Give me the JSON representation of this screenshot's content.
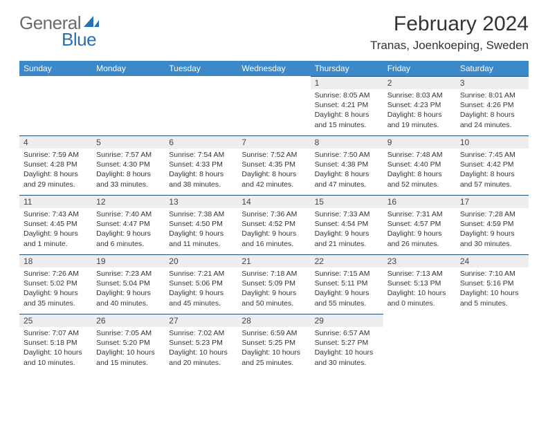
{
  "logo": {
    "text1": "General",
    "text2": "Blue"
  },
  "title": "February 2024",
  "location": "Tranas, Joenkoeping, Sweden",
  "colors": {
    "header_bg": "#3b89c9",
    "header_text": "#ffffff",
    "daynum_bg": "#eeeeee",
    "daynum_border": "#1d4e7a",
    "body_text": "#333333",
    "logo_gray": "#6a6a6a",
    "logo_blue": "#2b6fb3"
  },
  "day_headers": [
    "Sunday",
    "Monday",
    "Tuesday",
    "Wednesday",
    "Thursday",
    "Friday",
    "Saturday"
  ],
  "weeks": [
    [
      null,
      null,
      null,
      null,
      {
        "n": "1",
        "sunrise": "Sunrise: 8:05 AM",
        "sunset": "Sunset: 4:21 PM",
        "daylight1": "Daylight: 8 hours",
        "daylight2": "and 15 minutes."
      },
      {
        "n": "2",
        "sunrise": "Sunrise: 8:03 AM",
        "sunset": "Sunset: 4:23 PM",
        "daylight1": "Daylight: 8 hours",
        "daylight2": "and 19 minutes."
      },
      {
        "n": "3",
        "sunrise": "Sunrise: 8:01 AM",
        "sunset": "Sunset: 4:26 PM",
        "daylight1": "Daylight: 8 hours",
        "daylight2": "and 24 minutes."
      }
    ],
    [
      {
        "n": "4",
        "sunrise": "Sunrise: 7:59 AM",
        "sunset": "Sunset: 4:28 PM",
        "daylight1": "Daylight: 8 hours",
        "daylight2": "and 29 minutes."
      },
      {
        "n": "5",
        "sunrise": "Sunrise: 7:57 AM",
        "sunset": "Sunset: 4:30 PM",
        "daylight1": "Daylight: 8 hours",
        "daylight2": "and 33 minutes."
      },
      {
        "n": "6",
        "sunrise": "Sunrise: 7:54 AM",
        "sunset": "Sunset: 4:33 PM",
        "daylight1": "Daylight: 8 hours",
        "daylight2": "and 38 minutes."
      },
      {
        "n": "7",
        "sunrise": "Sunrise: 7:52 AM",
        "sunset": "Sunset: 4:35 PM",
        "daylight1": "Daylight: 8 hours",
        "daylight2": "and 42 minutes."
      },
      {
        "n": "8",
        "sunrise": "Sunrise: 7:50 AM",
        "sunset": "Sunset: 4:38 PM",
        "daylight1": "Daylight: 8 hours",
        "daylight2": "and 47 minutes."
      },
      {
        "n": "9",
        "sunrise": "Sunrise: 7:48 AM",
        "sunset": "Sunset: 4:40 PM",
        "daylight1": "Daylight: 8 hours",
        "daylight2": "and 52 minutes."
      },
      {
        "n": "10",
        "sunrise": "Sunrise: 7:45 AM",
        "sunset": "Sunset: 4:42 PM",
        "daylight1": "Daylight: 8 hours",
        "daylight2": "and 57 minutes."
      }
    ],
    [
      {
        "n": "11",
        "sunrise": "Sunrise: 7:43 AM",
        "sunset": "Sunset: 4:45 PM",
        "daylight1": "Daylight: 9 hours",
        "daylight2": "and 1 minute."
      },
      {
        "n": "12",
        "sunrise": "Sunrise: 7:40 AM",
        "sunset": "Sunset: 4:47 PM",
        "daylight1": "Daylight: 9 hours",
        "daylight2": "and 6 minutes."
      },
      {
        "n": "13",
        "sunrise": "Sunrise: 7:38 AM",
        "sunset": "Sunset: 4:50 PM",
        "daylight1": "Daylight: 9 hours",
        "daylight2": "and 11 minutes."
      },
      {
        "n": "14",
        "sunrise": "Sunrise: 7:36 AM",
        "sunset": "Sunset: 4:52 PM",
        "daylight1": "Daylight: 9 hours",
        "daylight2": "and 16 minutes."
      },
      {
        "n": "15",
        "sunrise": "Sunrise: 7:33 AM",
        "sunset": "Sunset: 4:54 PM",
        "daylight1": "Daylight: 9 hours",
        "daylight2": "and 21 minutes."
      },
      {
        "n": "16",
        "sunrise": "Sunrise: 7:31 AM",
        "sunset": "Sunset: 4:57 PM",
        "daylight1": "Daylight: 9 hours",
        "daylight2": "and 26 minutes."
      },
      {
        "n": "17",
        "sunrise": "Sunrise: 7:28 AM",
        "sunset": "Sunset: 4:59 PM",
        "daylight1": "Daylight: 9 hours",
        "daylight2": "and 30 minutes."
      }
    ],
    [
      {
        "n": "18",
        "sunrise": "Sunrise: 7:26 AM",
        "sunset": "Sunset: 5:02 PM",
        "daylight1": "Daylight: 9 hours",
        "daylight2": "and 35 minutes."
      },
      {
        "n": "19",
        "sunrise": "Sunrise: 7:23 AM",
        "sunset": "Sunset: 5:04 PM",
        "daylight1": "Daylight: 9 hours",
        "daylight2": "and 40 minutes."
      },
      {
        "n": "20",
        "sunrise": "Sunrise: 7:21 AM",
        "sunset": "Sunset: 5:06 PM",
        "daylight1": "Daylight: 9 hours",
        "daylight2": "and 45 minutes."
      },
      {
        "n": "21",
        "sunrise": "Sunrise: 7:18 AM",
        "sunset": "Sunset: 5:09 PM",
        "daylight1": "Daylight: 9 hours",
        "daylight2": "and 50 minutes."
      },
      {
        "n": "22",
        "sunrise": "Sunrise: 7:15 AM",
        "sunset": "Sunset: 5:11 PM",
        "daylight1": "Daylight: 9 hours",
        "daylight2": "and 55 minutes."
      },
      {
        "n": "23",
        "sunrise": "Sunrise: 7:13 AM",
        "sunset": "Sunset: 5:13 PM",
        "daylight1": "Daylight: 10 hours",
        "daylight2": "and 0 minutes."
      },
      {
        "n": "24",
        "sunrise": "Sunrise: 7:10 AM",
        "sunset": "Sunset: 5:16 PM",
        "daylight1": "Daylight: 10 hours",
        "daylight2": "and 5 minutes."
      }
    ],
    [
      {
        "n": "25",
        "sunrise": "Sunrise: 7:07 AM",
        "sunset": "Sunset: 5:18 PM",
        "daylight1": "Daylight: 10 hours",
        "daylight2": "and 10 minutes."
      },
      {
        "n": "26",
        "sunrise": "Sunrise: 7:05 AM",
        "sunset": "Sunset: 5:20 PM",
        "daylight1": "Daylight: 10 hours",
        "daylight2": "and 15 minutes."
      },
      {
        "n": "27",
        "sunrise": "Sunrise: 7:02 AM",
        "sunset": "Sunset: 5:23 PM",
        "daylight1": "Daylight: 10 hours",
        "daylight2": "and 20 minutes."
      },
      {
        "n": "28",
        "sunrise": "Sunrise: 6:59 AM",
        "sunset": "Sunset: 5:25 PM",
        "daylight1": "Daylight: 10 hours",
        "daylight2": "and 25 minutes."
      },
      {
        "n": "29",
        "sunrise": "Sunrise: 6:57 AM",
        "sunset": "Sunset: 5:27 PM",
        "daylight1": "Daylight: 10 hours",
        "daylight2": "and 30 minutes."
      },
      null,
      null
    ]
  ]
}
